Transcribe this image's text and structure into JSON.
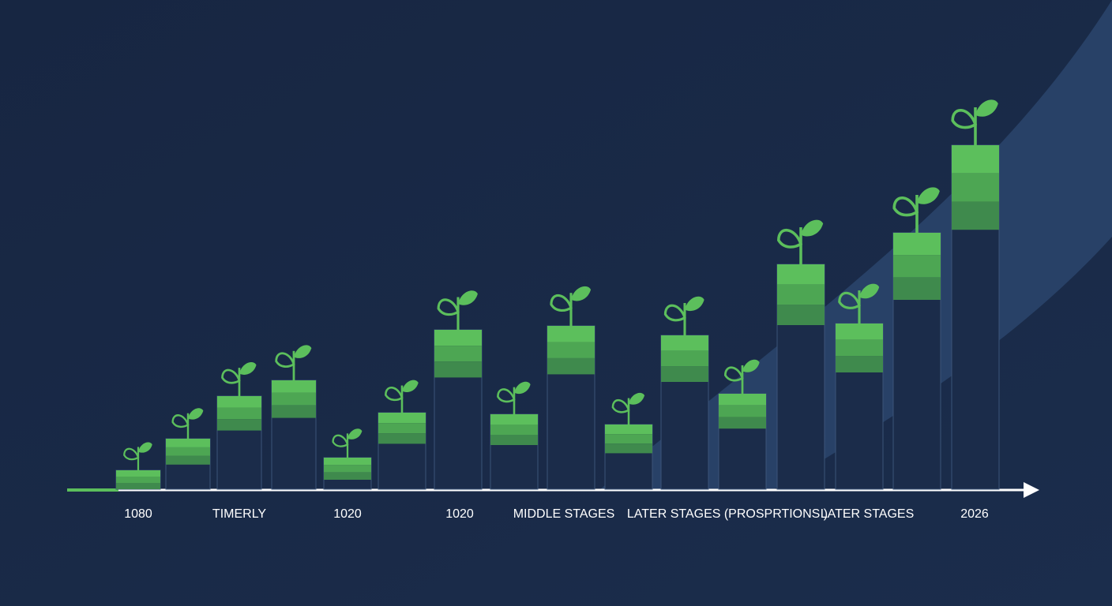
{
  "chart_data": {
    "type": "bar",
    "categories": [
      "1080",
      null,
      "TIMERLY",
      null,
      "1020",
      null,
      "1020",
      null,
      "MIDDLE STAGES",
      null,
      null,
      "LATER STAGES (PROSPRTIONS )",
      null,
      "LATER STAGES",
      null,
      "2026"
    ],
    "values": [
      24,
      64,
      118,
      138,
      40,
      97,
      202,
      95,
      207,
      82,
      195,
      121,
      285,
      210,
      325,
      436
    ],
    "color": "#5cbf5c",
    "ylim": [
      0,
      500
    ]
  }
}
